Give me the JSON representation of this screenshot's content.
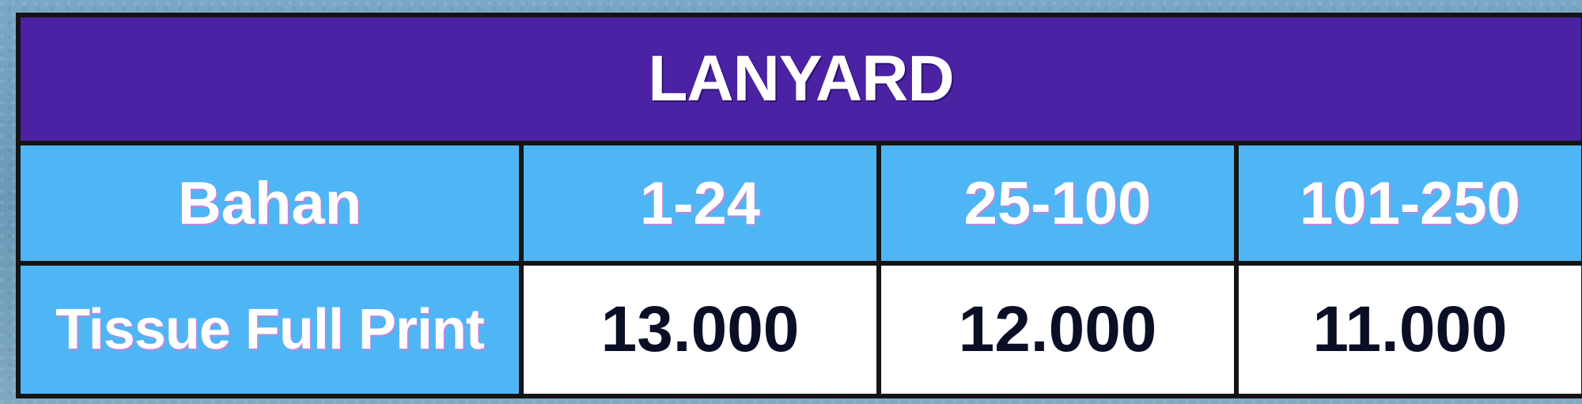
{
  "table": {
    "title": "LANYARD",
    "header": [
      "Bahan",
      "1-24",
      "25-100",
      "101-250"
    ],
    "rows": [
      {
        "label": "Tissue Full Print",
        "values": [
          "13.000",
          "12.000",
          "11.000"
        ]
      }
    ]
  },
  "colors": {
    "title_bg": "#4b22a3",
    "header_bg": "#4fb6f5",
    "cell_bg": "#ffffff",
    "border": "#141414"
  }
}
